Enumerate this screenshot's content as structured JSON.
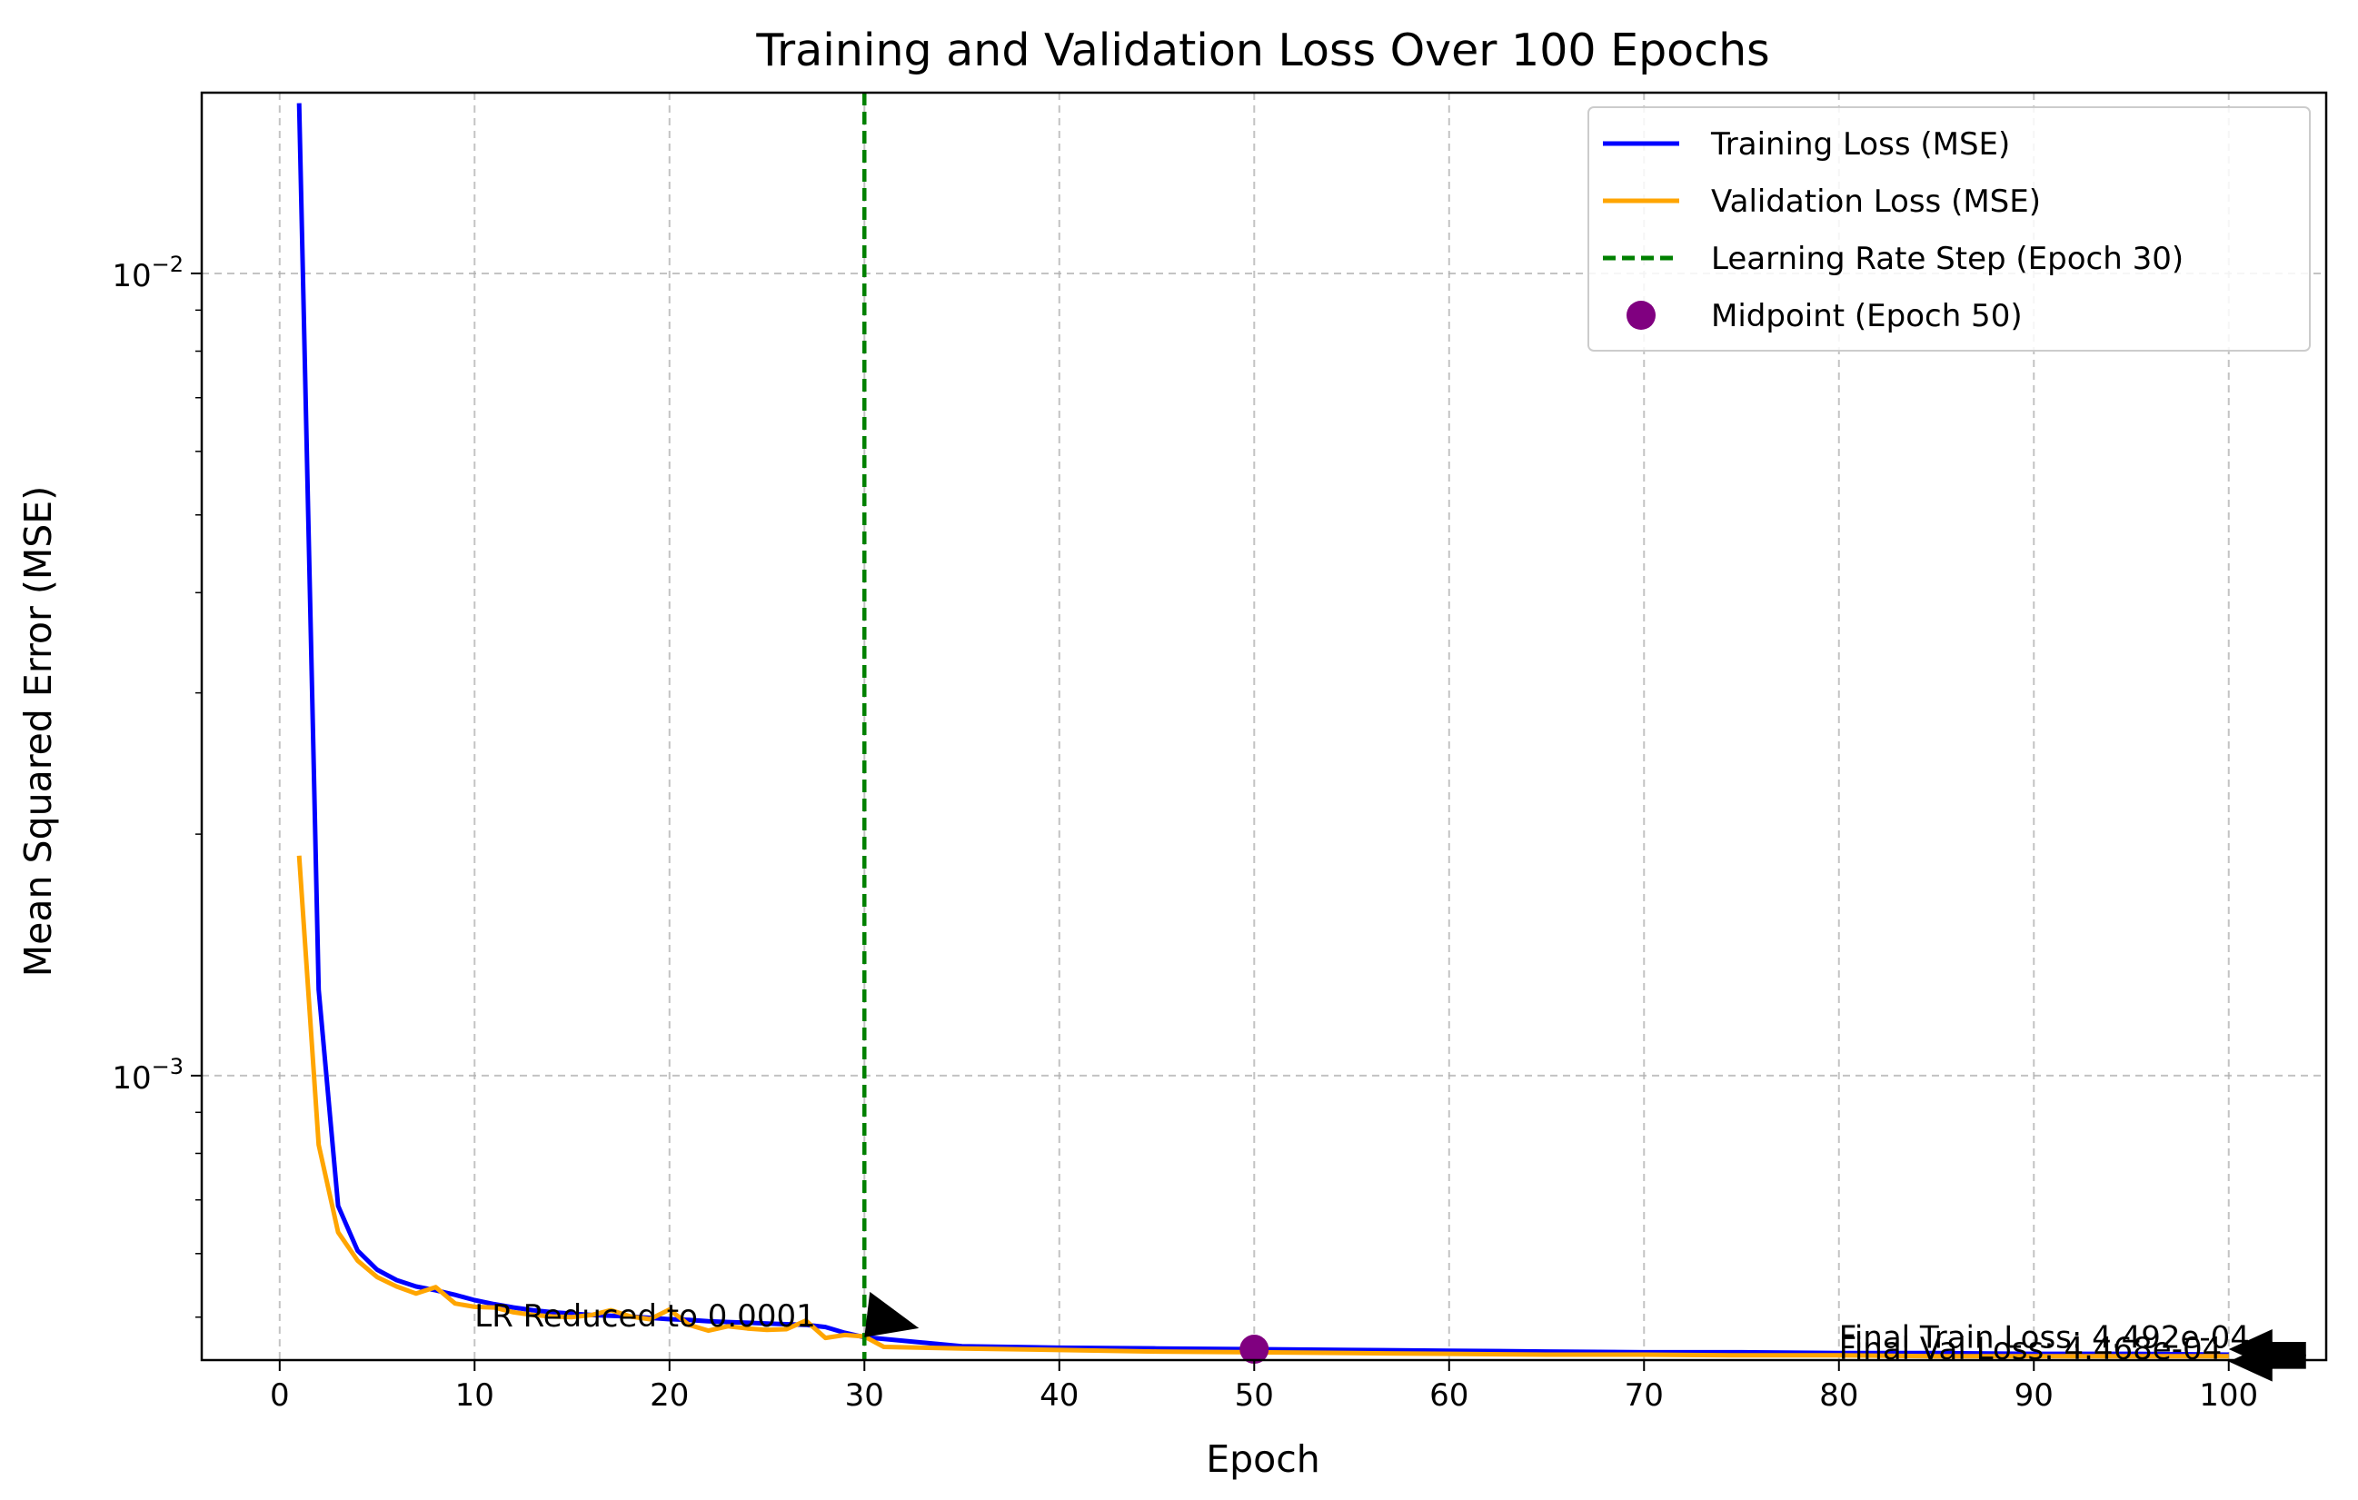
{
  "chart_data": {
    "type": "line",
    "title": "Training and Validation Loss Over 100 Epochs",
    "xlabel": "Epoch",
    "ylabel": "Mean Squared Error (MSE)",
    "xlim": [
      -4,
      105
    ],
    "ylim": [
      0.000442,
      0.0168
    ],
    "yscale": "log",
    "grid": true,
    "x_ticks": [
      0,
      10,
      20,
      30,
      40,
      50,
      60,
      70,
      80,
      90,
      100
    ],
    "x_tick_labels": [
      "0",
      "10",
      "20",
      "30",
      "40",
      "50",
      "60",
      "70",
      "80",
      "90",
      "100"
    ],
    "y_ticks": [
      0.01,
      0.001
    ],
    "y_tick_labels": [
      {
        "base": "10",
        "exp": "−2"
      },
      {
        "base": "10",
        "exp": "−3"
      }
    ],
    "legend_position": "top-right",
    "series": [
      {
        "name": "Training Loss (MSE)",
        "color": "#0000ff",
        "x": [
          1,
          2,
          3,
          4,
          5,
          6,
          7,
          8,
          9,
          10,
          11,
          12,
          13,
          14,
          15,
          16,
          17,
          18,
          19,
          20,
          21,
          22,
          23,
          24,
          25,
          26,
          27,
          28,
          29,
          30,
          35,
          40,
          45,
          50,
          55,
          60,
          65,
          70,
          75,
          80,
          85,
          90,
          95,
          100
        ],
        "y": [
          0.0163,
          0.00128,
          0.000688,
          0.000605,
          0.000573,
          0.000556,
          0.000546,
          0.00054,
          0.000533,
          0.000525,
          0.000519,
          0.000514,
          0.00051,
          0.000507,
          0.000505,
          0.000503,
          0.000502,
          0.000501,
          0.000499,
          0.000497,
          0.000496,
          0.000494,
          0.000493,
          0.000492,
          0.000491,
          0.00049,
          0.000489,
          0.000486,
          0.000478,
          0.000472,
          0.00046,
          0.000458,
          0.000457,
          0.000456,
          0.000455,
          0.000454,
          0.000453,
          0.000452,
          0.000452,
          0.000451,
          0.000451,
          0.00045,
          0.00045,
          0.000449
        ]
      },
      {
        "name": "Validation Loss (MSE)",
        "color": "#ffa500",
        "x": [
          1,
          2,
          3,
          4,
          5,
          6,
          7,
          8,
          9,
          10,
          11,
          12,
          13,
          14,
          15,
          16,
          17,
          18,
          19,
          20,
          21,
          22,
          23,
          24,
          25,
          26,
          27,
          28,
          29,
          30,
          31,
          35,
          40,
          45,
          50,
          55,
          60,
          65,
          70,
          75,
          80,
          85,
          90,
          95,
          100
        ],
        "y": [
          0.00188,
          0.00082,
          0.000638,
          0.000588,
          0.000561,
          0.000546,
          0.000535,
          0.000545,
          0.00052,
          0.000515,
          0.000514,
          0.000507,
          0.000503,
          0.000501,
          0.0005,
          0.000503,
          0.00051,
          0.000501,
          0.000497,
          0.000511,
          0.000489,
          0.000481,
          0.000487,
          0.000484,
          0.000482,
          0.000483,
          0.000495,
          0.000471,
          0.000475,
          0.000473,
          0.000459,
          0.000457,
          0.000455,
          0.000453,
          0.000452,
          0.000451,
          0.00045,
          0.000449,
          0.000449,
          0.000448,
          0.000448,
          0.000447,
          0.000447,
          0.000447,
          0.000447
        ]
      }
    ],
    "reference_line": {
      "name": "Learning Rate Step (Epoch 30)",
      "x": 30,
      "color": "#008000",
      "style": "dashed"
    },
    "marker_point": {
      "name": "Midpoint (Epoch 50)",
      "x": 50,
      "y": 0.000456,
      "color": "#800080"
    },
    "annotations": [
      {
        "text": "LR Reduced to 0.0001",
        "text_x": 10,
        "text_y": 0.000487,
        "arrow_to_x": 30,
        "arrow_to_y": 0.000472
      },
      {
        "text": "Final Train Loss: 4.492e-04",
        "text_x": 80,
        "text_y": 0.000458,
        "arrow_to_x": 100,
        "arrow_to_y": 0.000449
      },
      {
        "text": "Final Val Loss: 4.468e-04",
        "text_x": 80,
        "text_y": 0.000443,
        "arrow_to_x": 100,
        "arrow_to_y": 0.000447
      }
    ]
  }
}
